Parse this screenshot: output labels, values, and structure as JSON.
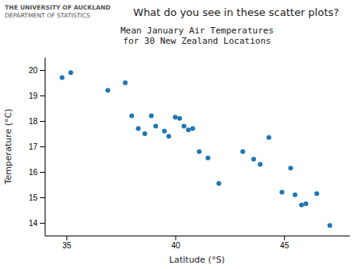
{
  "chart_data": {
    "type": "scatter",
    "title": "Mean January Air Temperatures\nfor 30 New Zealand Locations",
    "subtitle": "What do you see in these scatter plots?",
    "annotations": [
      "THE UNIVERSITY OF AUCKLAND",
      "DEPARTMENT OF STATISTICS"
    ],
    "xlabel": "Latitude (°S)",
    "ylabel": "Temperature (°C)",
    "xlim": [
      34.0,
      48.0
    ],
    "ylim": [
      13.5,
      20.5
    ],
    "xticks": [
      35,
      40,
      45
    ],
    "yticks": [
      14,
      15,
      16,
      17,
      18,
      19,
      20
    ],
    "x": [
      34.8,
      35.2,
      36.9,
      37.7,
      38.0,
      38.3,
      38.6,
      38.9,
      39.1,
      39.5,
      39.7,
      40.0,
      40.2,
      40.4,
      40.6,
      40.8,
      41.1,
      41.5,
      42.0,
      43.1,
      43.6,
      43.9,
      44.3,
      44.9,
      45.3,
      45.5,
      45.8,
      46.0,
      46.5,
      47.1
    ],
    "values": [
      19.7,
      19.9,
      19.2,
      19.5,
      18.2,
      17.7,
      17.5,
      18.2,
      17.8,
      17.6,
      17.4,
      18.15,
      18.1,
      17.8,
      17.65,
      17.7,
      16.8,
      16.55,
      15.55,
      16.8,
      16.5,
      16.3,
      17.35,
      15.2,
      16.15,
      15.1,
      14.7,
      14.75,
      15.15,
      13.9
    ]
  }
}
